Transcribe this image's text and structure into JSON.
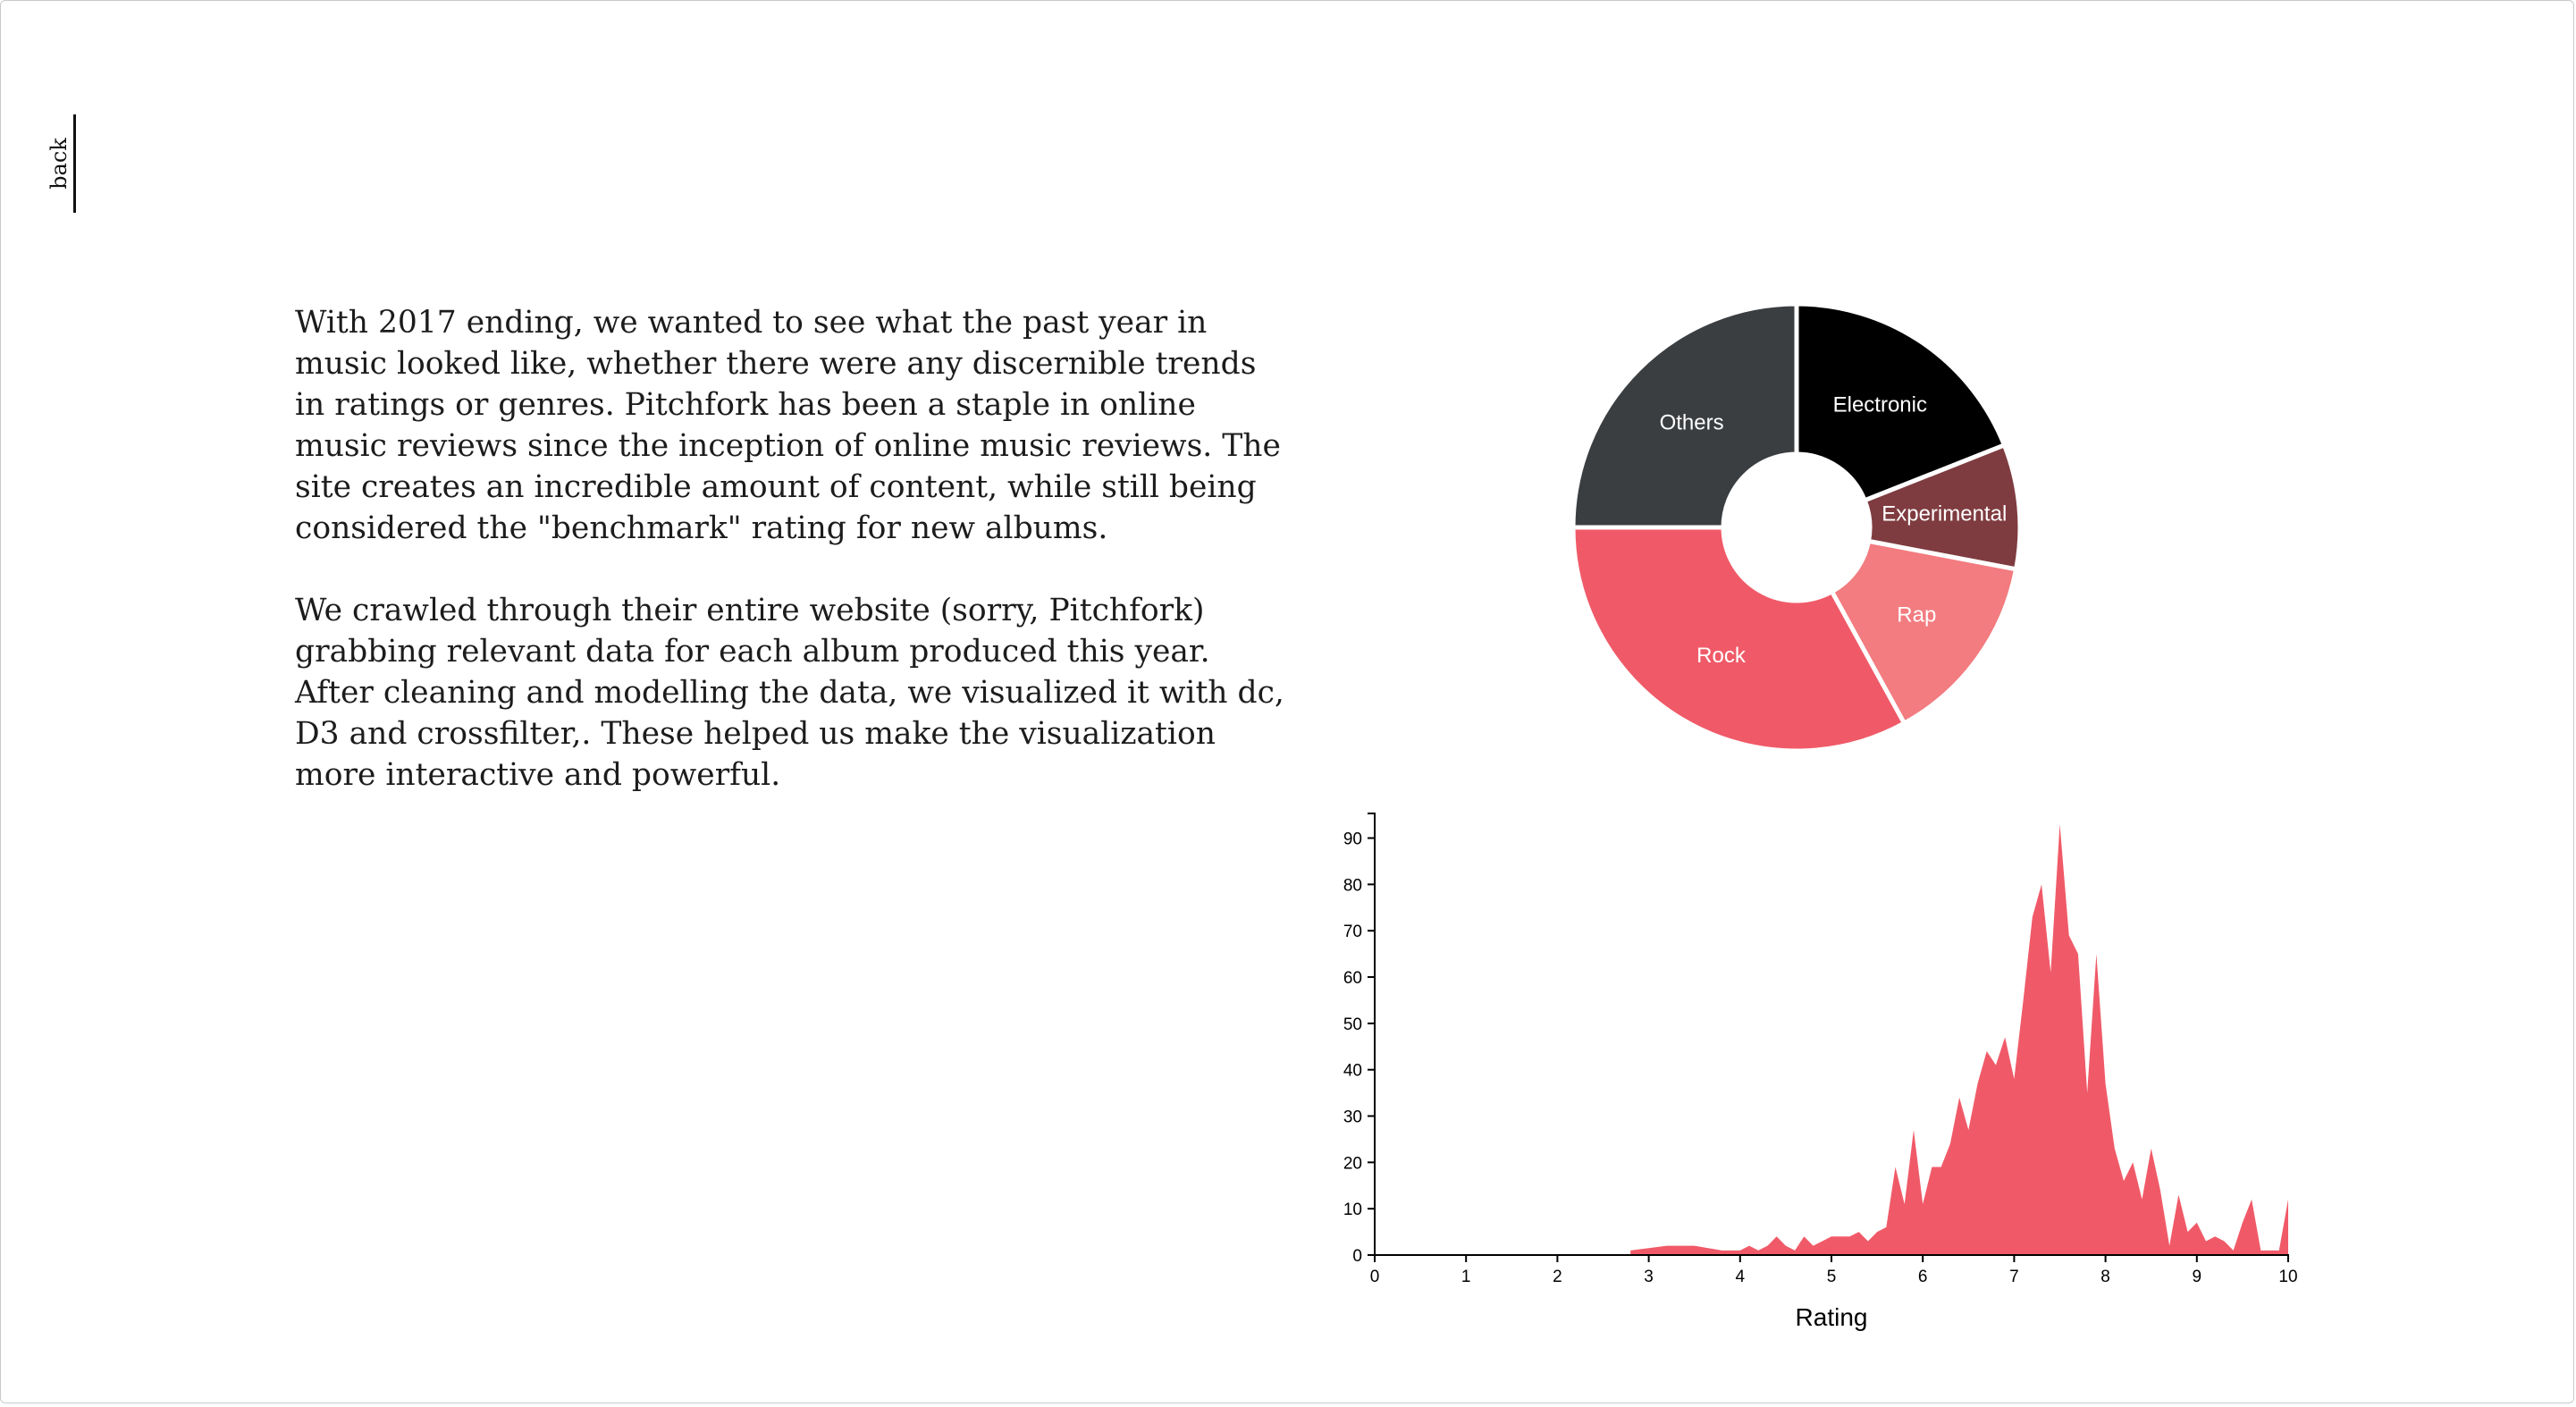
{
  "nav": {
    "back_label": "back"
  },
  "intro": {
    "paragraphs": [
      "With 2017 ending, we wanted to see what the past year in music looked like, whether there were any discernible trends in ratings or genres. Pitchfork has been a staple in online music reviews since the inception of online music reviews. The site creates an incredible amount of content, while still being considered the \"benchmark\" rating for new albums.",
      "We crawled through their entire website (sorry, Pitchfork) grabbing relevant data for each album produced this year. After cleaning and modelling the data, we visualized it with dc, D3 and crossfilter,. These helped us make the visualization more interactive and powerful."
    ]
  },
  "colors": {
    "Electronic": "#000000",
    "Experimental": "#7f3c40",
    "Rap": "#f27c80",
    "Rock": "#f05a68",
    "Others": "#3b3e41",
    "area_fill": "#f05a68",
    "axis": "#000000"
  },
  "chart_data": [
    {
      "type": "pie",
      "donut": true,
      "categories": [
        "Electronic",
        "Experimental",
        "Rap",
        "Rock",
        "Others"
      ],
      "values": [
        19,
        9,
        14,
        33,
        25
      ]
    },
    {
      "type": "area",
      "xlabel": "Rating",
      "ylabel": "",
      "xlim": [
        0,
        10
      ],
      "ylim": [
        0,
        93
      ],
      "xticks": [
        0,
        1,
        2,
        3,
        4,
        5,
        6,
        7,
        8,
        9,
        10
      ],
      "yticks": [
        0,
        10,
        20,
        30,
        40,
        50,
        60,
        70,
        80,
        90
      ],
      "x": [
        2.8,
        3.0,
        3.2,
        3.5,
        3.8,
        4.0,
        4.1,
        4.2,
        4.3,
        4.4,
        4.5,
        4.6,
        4.7,
        4.8,
        4.9,
        5.0,
        5.1,
        5.2,
        5.3,
        5.4,
        5.5,
        5.6,
        5.7,
        5.8,
        5.9,
        6.0,
        6.1,
        6.2,
        6.3,
        6.4,
        6.5,
        6.6,
        6.7,
        6.8,
        6.9,
        7.0,
        7.1,
        7.2,
        7.3,
        7.4,
        7.5,
        7.6,
        7.7,
        7.8,
        7.9,
        8.0,
        8.1,
        8.2,
        8.3,
        8.4,
        8.5,
        8.6,
        8.7,
        8.8,
        8.9,
        9.0,
        9.1,
        9.2,
        9.3,
        9.4,
        9.5,
        9.6,
        9.7,
        9.8,
        9.9,
        10.0
      ],
      "y": [
        1,
        1.5,
        2,
        2,
        1,
        1,
        2,
        1,
        2,
        4,
        2,
        1,
        4,
        2,
        3,
        4,
        4,
        4,
        5,
        3,
        5,
        6,
        19,
        11,
        27,
        11,
        19,
        19,
        24,
        34,
        27,
        37,
        44,
        41,
        47,
        38,
        55,
        73,
        80,
        61,
        93,
        69,
        65,
        35,
        65,
        37,
        23,
        16,
        20,
        12,
        23,
        14,
        2,
        13,
        5,
        7,
        3,
        4,
        3,
        1,
        7,
        12,
        1,
        1,
        1,
        12
      ]
    }
  ]
}
